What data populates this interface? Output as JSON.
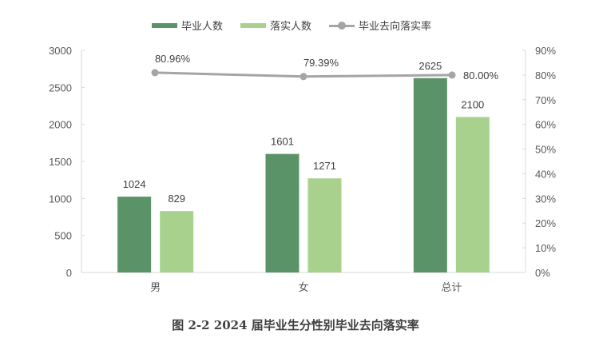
{
  "legend": {
    "series1": "毕业人数",
    "series2": "落实人数",
    "series3": "毕业去向落实率"
  },
  "caption": "图 2-2 2024 届毕业生分性别毕业去向落实率",
  "colors": {
    "graduates": "#5a9367",
    "placed": "#a9d18e",
    "rate": "#a5a5a5"
  },
  "chart_data": {
    "type": "bar",
    "title": "图 2-2 2024 届毕业生分性别毕业去向落实率",
    "categories": [
      "男",
      "女",
      "总计"
    ],
    "series": [
      {
        "name": "毕业人数",
        "type": "bar",
        "axis": "left",
        "values": [
          1024,
          1601,
          2625
        ],
        "labels": [
          "1024",
          "1601",
          "2625"
        ]
      },
      {
        "name": "落实人数",
        "type": "bar",
        "axis": "left",
        "values": [
          829,
          1271,
          2100
        ],
        "labels": [
          "829",
          "1271",
          "2100"
        ]
      },
      {
        "name": "毕业去向落实率",
        "type": "line",
        "axis": "right",
        "values": [
          80.96,
          79.39,
          80.0
        ],
        "labels": [
          "80.96%",
          "79.39%",
          "80.00%"
        ]
      }
    ],
    "left_axis": {
      "ylim": [
        0,
        3000
      ],
      "ticks": [
        "0",
        "500",
        "1000",
        "1500",
        "2000",
        "2500",
        "3000"
      ]
    },
    "right_axis": {
      "ylim": [
        0,
        90
      ],
      "ticks": [
        "0%",
        "10%",
        "20%",
        "30%",
        "40%",
        "50%",
        "60%",
        "70%",
        "80%",
        "90%"
      ]
    },
    "xlabel": "",
    "ylabel": "",
    "grid": false,
    "legend_position": "top"
  }
}
